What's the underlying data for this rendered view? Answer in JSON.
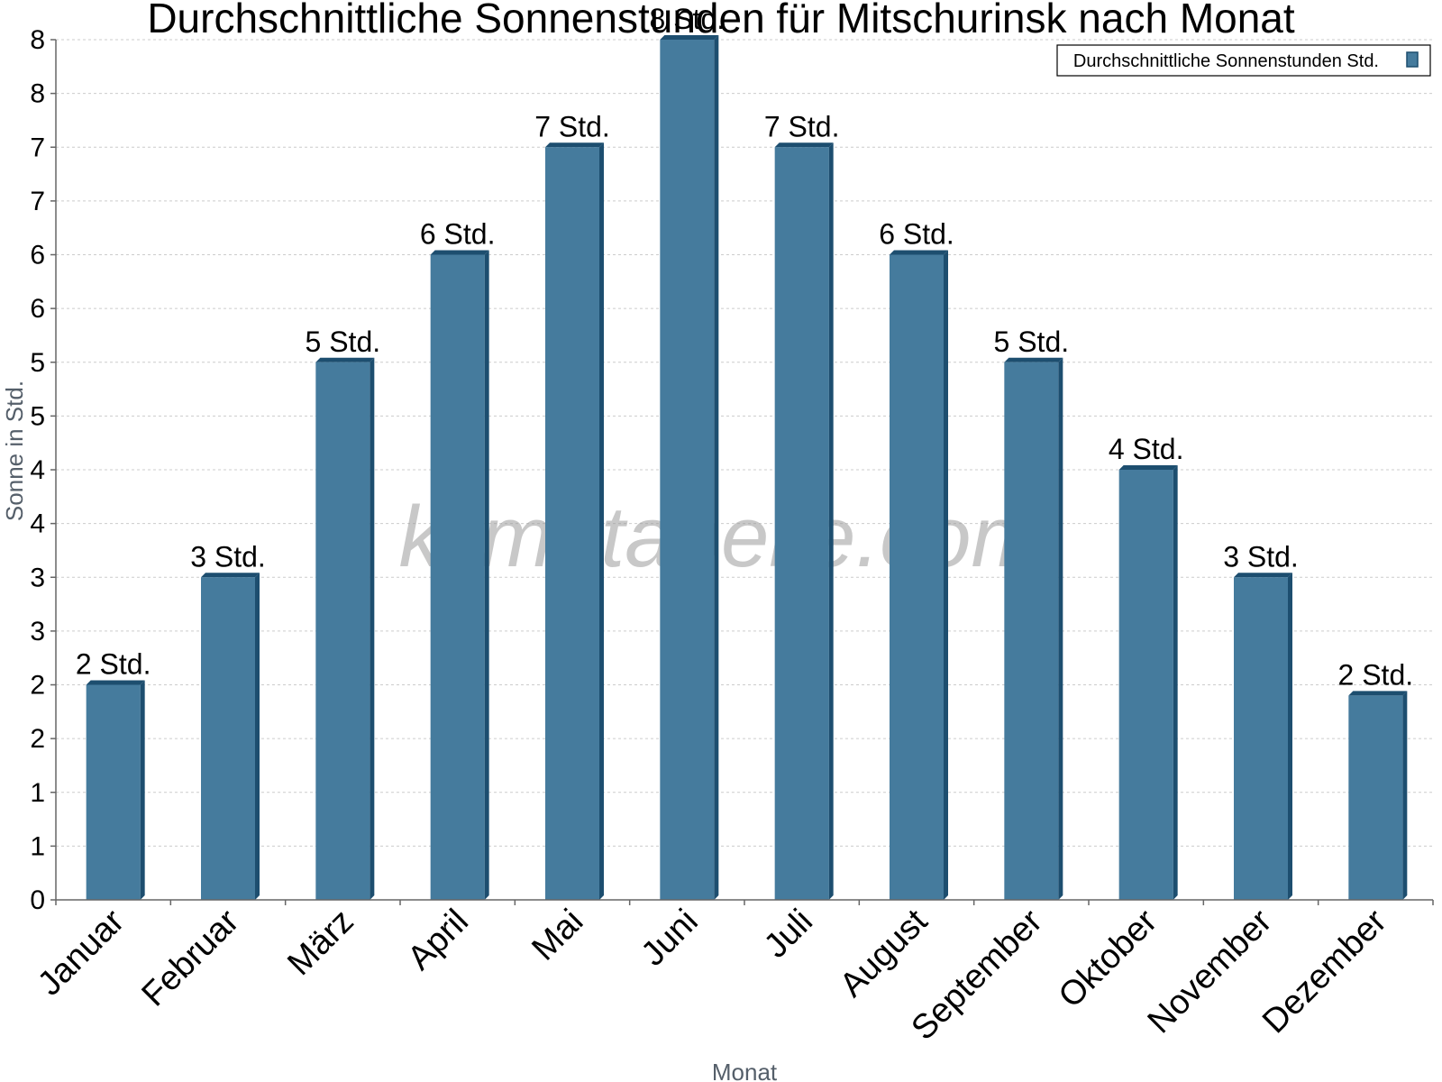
{
  "chart_data": {
    "type": "bar",
    "title": "Durchschnittliche Sonnenstunden für Mitschurinsk nach Monat",
    "xlabel": "Monat",
    "ylabel": "Sonne in Std.",
    "ylim": [
      0,
      8
    ],
    "y_tick_labels": [
      "0",
      "1",
      "1",
      "2",
      "2",
      "3",
      "3",
      "4",
      "4",
      "5",
      "5",
      "6",
      "6",
      "7",
      "7",
      "8",
      "8"
    ],
    "grid": true,
    "legend": {
      "position": "top-right",
      "label": "Durchschnittliche Sonnenstunden Std."
    },
    "categories": [
      "Januar",
      "Februar",
      "März",
      "April",
      "Mai",
      "Juni",
      "Juli",
      "August",
      "September",
      "Oktober",
      "November",
      "Dezember"
    ],
    "series": [
      {
        "name": "Durchschnittliche Sonnenstunden Std.",
        "color": "#457b9d",
        "values": [
          2.0,
          3.0,
          5.0,
          6.0,
          7.0,
          8.0,
          7.0,
          6.0,
          5.0,
          4.0,
          3.0,
          1.9
        ],
        "labels": [
          "2 Std.",
          "3 Std.",
          "5 Std.",
          "6 Std.",
          "7 Std.",
          "8 Std.",
          "7 Std.",
          "6 Std.",
          "5 Std.",
          "4 Std.",
          "3 Std.",
          "2 Std."
        ]
      }
    ]
  },
  "watermark": "klimatabelle.com",
  "colors": {
    "bar_front": "#457b9d",
    "bar_side": "#1d4e6f",
    "bar_top": "#1d4e6f"
  }
}
